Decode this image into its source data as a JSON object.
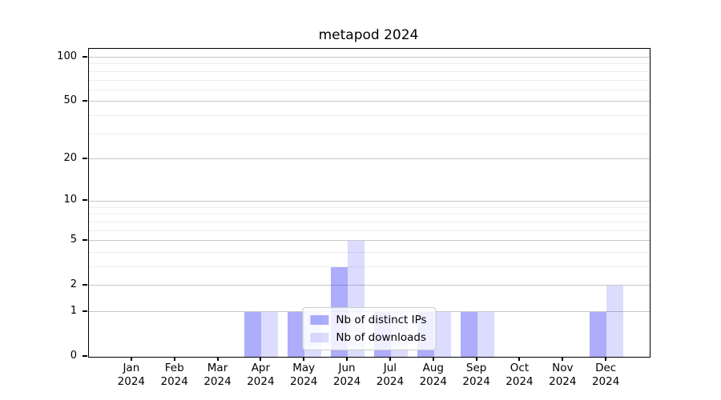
{
  "chart_data": {
    "type": "bar",
    "title": "metapod 2024",
    "categories": [
      "Jan 2024",
      "Feb 2024",
      "Mar 2024",
      "Apr 2024",
      "May 2024",
      "Jun 2024",
      "Jul 2024",
      "Aug 2024",
      "Sep 2024",
      "Oct 2024",
      "Nov 2024",
      "Dec 2024"
    ],
    "x_tick_month": [
      "Jan",
      "Feb",
      "Mar",
      "Apr",
      "May",
      "Jun",
      "Jul",
      "Aug",
      "Sep",
      "Oct",
      "Nov",
      "Dec"
    ],
    "x_tick_year": [
      "2024",
      "2024",
      "2024",
      "2024",
      "2024",
      "2024",
      "2024",
      "2024",
      "2024",
      "2024",
      "2024",
      "2024"
    ],
    "series": [
      {
        "name": "Nb of distinct IPs",
        "color": "rgba(20,20,245,0.35)",
        "values": [
          0,
          0,
          0,
          1,
          1,
          3,
          1,
          1,
          1,
          0,
          0,
          1
        ]
      },
      {
        "name": "Nb of downloads",
        "color": "rgba(20,20,245,0.15)",
        "values": [
          0,
          0,
          0,
          1,
          1,
          5,
          1,
          1,
          1,
          0,
          0,
          2
        ]
      }
    ],
    "y_axis": {
      "scale": "log10(1+v)",
      "tick_values": [
        0,
        1,
        2,
        5,
        10,
        20,
        50,
        100
      ],
      "tick_labels": [
        "0",
        "1",
        "2",
        "5",
        "10",
        "20",
        "50",
        "100"
      ],
      "minor_gridline_values": [
        3,
        4,
        6,
        7,
        8,
        9,
        30,
        40,
        60,
        70,
        80,
        90
      ],
      "ylim": [
        0,
        114
      ]
    },
    "legend_position": "lower center",
    "grid": true
  },
  "colors": {
    "background": "#ffffff",
    "spine": "#000000",
    "major_grid": "#c8c8c8",
    "minor_grid": "#ededed",
    "legend_border": "#cccccc"
  }
}
